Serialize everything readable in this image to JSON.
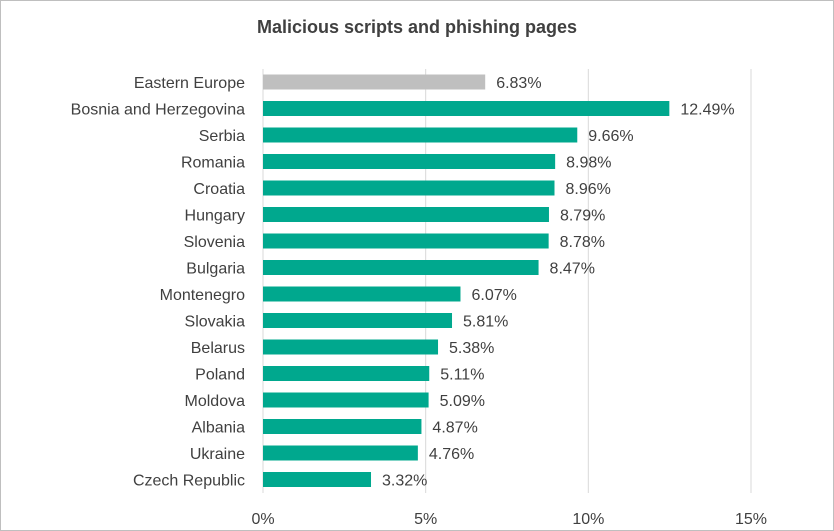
{
  "chart_data": {
    "type": "bar",
    "orientation": "horizontal",
    "title": "Malicious scripts and phishing pages",
    "xlabel": "",
    "ylabel": "",
    "categories": [
      "Eastern Europe",
      "Bosnia and Herzegovina",
      "Serbia",
      "Romania",
      "Croatia",
      "Hungary",
      "Slovenia",
      "Bulgaria",
      "Montenegro",
      "Slovakia",
      "Belarus",
      "Poland",
      "Moldova",
      "Albania",
      "Ukraine",
      "Czech Republic"
    ],
    "values": [
      6.83,
      12.49,
      9.66,
      8.98,
      8.96,
      8.79,
      8.78,
      8.47,
      6.07,
      5.81,
      5.38,
      5.11,
      5.09,
      4.87,
      4.76,
      3.32
    ],
    "value_labels": [
      "6.83%",
      "12.49%",
      "9.66%",
      "8.98%",
      "8.96%",
      "8.79%",
      "8.78%",
      "8.47%",
      "6.07%",
      "5.81%",
      "5.38%",
      "5.11%",
      "5.09%",
      "4.87%",
      "4.76%",
      "3.32%"
    ],
    "xlim": [
      0,
      15
    ],
    "xticks": [
      0,
      5,
      10,
      15
    ],
    "xtick_labels": [
      "0%",
      "5%",
      "10%",
      "15%"
    ],
    "grid": "vertical",
    "legend": "none",
    "colors": {
      "highlight": "#bfbfbf",
      "bar": "#00a88e",
      "grid": "#d9d9d9",
      "text": "#404040"
    },
    "highlight_categories": [
      "Eastern Europe"
    ]
  }
}
